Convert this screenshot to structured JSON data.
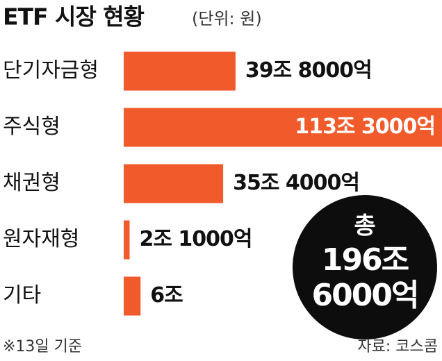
{
  "chart_data": {
    "type": "bar",
    "orientation": "horizontal",
    "title": "ETF 시장 현황",
    "subtitle": "(단위: 원)",
    "categories": [
      "단기자금형",
      "주식형",
      "채권형",
      "원자재형",
      "기타"
    ],
    "values": [
      39.8,
      113.3,
      35.4,
      2.1,
      6
    ],
    "value_labels": [
      "39조 8000억",
      "113조 3000억",
      "35조 4000억",
      "2조 1000억",
      "6조"
    ],
    "color": "#f15a2b",
    "total_label": "총",
    "total_lines": [
      "196조",
      "6000억"
    ],
    "note": "※13일 기준",
    "source": "자료: 코스콤"
  }
}
